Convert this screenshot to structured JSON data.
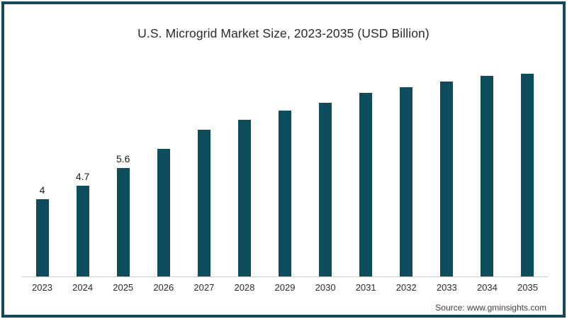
{
  "title": "U.S. Microgrid Market Size, 2023-2035 (USD Billion)",
  "source": "Source: www.gminsights.com",
  "colors": {
    "bar": "#0e4d5e",
    "frame": "#0e4a5c",
    "axis_line": "#cccccc",
    "title_text": "#2b2b2b",
    "tick_text": "#2a2a2a",
    "value_label_text": "#1a1a1a",
    "source_text": "#404040",
    "background": "#ffffff"
  },
  "chart_data": {
    "type": "bar",
    "title": "U.S. Microgrid Market Size, 2023-2035 (USD Billion)",
    "xlabel": "",
    "ylabel": "",
    "categories": [
      "2023",
      "2024",
      "2025",
      "2026",
      "2027",
      "2028",
      "2029",
      "2030",
      "2031",
      "2032",
      "2033",
      "2034",
      "2035"
    ],
    "values": [
      4,
      4.7,
      5.6,
      6.6,
      7.6,
      8.1,
      8.6,
      9.0,
      9.5,
      9.8,
      10.1,
      10.4,
      10.5
    ],
    "value_labels": [
      "4",
      "4.7",
      "5.6",
      "",
      "",
      "",
      "",
      "",
      "",
      "",
      "",
      "",
      ""
    ],
    "ylim": [
      0,
      11.5
    ],
    "grid": false,
    "legend": false,
    "bar_color": "#0e4d5e"
  }
}
